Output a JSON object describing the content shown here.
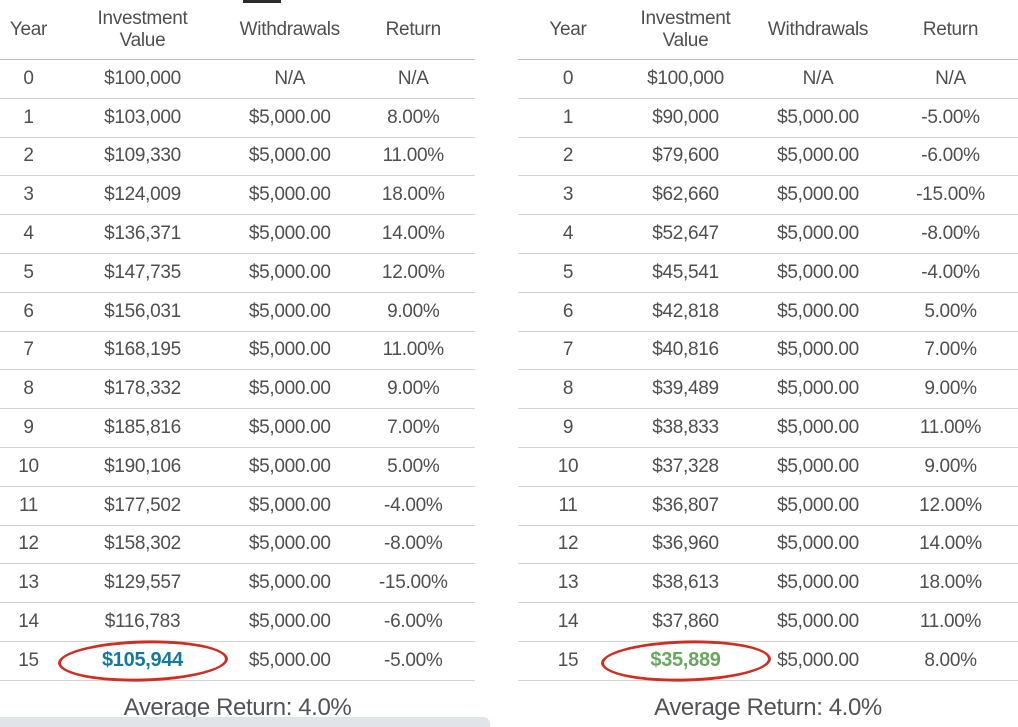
{
  "colors": {
    "text": "#4e4f51",
    "divider": "#d2d2d2",
    "header_divider": "#bfbfbf",
    "highlight_blue": "#15799f",
    "highlight_green": "#68a75e",
    "circle_red": "#cd2f22",
    "bottom_strip": "#e1e4e8",
    "top_mark": "#2b2b2b"
  },
  "chart_data": [
    {
      "type": "table",
      "position": "left",
      "columns": [
        "Year",
        "Investment Value",
        "Withdrawals",
        "Return"
      ],
      "rows": [
        [
          "0",
          "$100,000",
          "N/A",
          "N/A"
        ],
        [
          "1",
          "$103,000",
          "$5,000.00",
          "8.00%"
        ],
        [
          "2",
          "$109,330",
          "$5,000.00",
          "11.00%"
        ],
        [
          "3",
          "$124,009",
          "$5,000.00",
          "18.00%"
        ],
        [
          "4",
          "$136,371",
          "$5,000.00",
          "14.00%"
        ],
        [
          "5",
          "$147,735",
          "$5,000.00",
          "12.00%"
        ],
        [
          "6",
          "$156,031",
          "$5,000.00",
          "9.00%"
        ],
        [
          "7",
          "$168,195",
          "$5,000.00",
          "11.00%"
        ],
        [
          "8",
          "$178,332",
          "$5,000.00",
          "9.00%"
        ],
        [
          "9",
          "$185,816",
          "$5,000.00",
          "7.00%"
        ],
        [
          "10",
          "$190,106",
          "$5,000.00",
          "5.00%"
        ],
        [
          "11",
          "$177,502",
          "$5,000.00",
          "-4.00%"
        ],
        [
          "12",
          "$158,302",
          "$5,000.00",
          "-8.00%"
        ],
        [
          "13",
          "$129,557",
          "$5,000.00",
          "-15.00%"
        ],
        [
          "14",
          "$116,783",
          "$5,000.00",
          "-6.00%"
        ],
        [
          "15",
          "$105,944",
          "$5,000.00",
          "-5.00%"
        ]
      ],
      "highlight": {
        "row_index": 15,
        "col_index": 1,
        "value": "$105,944",
        "color": "#15799f",
        "annotation": "red-ellipse"
      },
      "footer": "Average Return: 4.0%"
    },
    {
      "type": "table",
      "position": "right",
      "columns": [
        "Year",
        "Investment Value",
        "Withdrawals",
        "Return"
      ],
      "rows": [
        [
          "0",
          "$100,000",
          "N/A",
          "N/A"
        ],
        [
          "1",
          "$90,000",
          "$5,000.00",
          "-5.00%"
        ],
        [
          "2",
          "$79,600",
          "$5,000.00",
          "-6.00%"
        ],
        [
          "3",
          "$62,660",
          "$5,000.00",
          "-15.00%"
        ],
        [
          "4",
          "$52,647",
          "$5,000.00",
          "-8.00%"
        ],
        [
          "5",
          "$45,541",
          "$5,000.00",
          "-4.00%"
        ],
        [
          "6",
          "$42,818",
          "$5,000.00",
          "5.00%"
        ],
        [
          "7",
          "$40,816",
          "$5,000.00",
          "7.00%"
        ],
        [
          "8",
          "$39,489",
          "$5,000.00",
          "9.00%"
        ],
        [
          "9",
          "$38,833",
          "$5,000.00",
          "11.00%"
        ],
        [
          "10",
          "$37,328",
          "$5,000.00",
          "9.00%"
        ],
        [
          "11",
          "$36,807",
          "$5,000.00",
          "12.00%"
        ],
        [
          "12",
          "$36,960",
          "$5,000.00",
          "14.00%"
        ],
        [
          "13",
          "$38,613",
          "$5,000.00",
          "18.00%"
        ],
        [
          "14",
          "$37,860",
          "$5,000.00",
          "11.00%"
        ],
        [
          "15",
          "$35,889",
          "$5,000.00",
          "8.00%"
        ]
      ],
      "highlight": {
        "row_index": 15,
        "col_index": 1,
        "value": "$35,889",
        "color": "#68a75e",
        "annotation": "red-ellipse"
      },
      "footer": "Average Return: 4.0%"
    }
  ]
}
